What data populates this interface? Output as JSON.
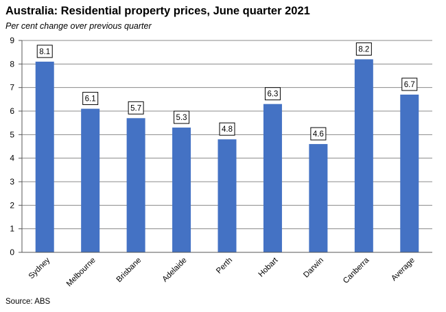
{
  "chart_data": {
    "type": "bar",
    "title": "Australia: Residential property prices, June quarter 2021",
    "subtitle": "Per cent change over previous quarter",
    "source": "Source: ABS",
    "xlabel": "",
    "ylabel": "",
    "categories": [
      "Sydney",
      "Melbourne",
      "Brisbane",
      "Adelaide",
      "Perth",
      "Hobart",
      "Darwin",
      "Canberra",
      "Average"
    ],
    "values": [
      8.1,
      6.1,
      5.7,
      5.3,
      4.8,
      6.3,
      4.6,
      8.2,
      6.7
    ],
    "value_labels": [
      "8.1",
      "6.1",
      "5.7",
      "5.3",
      "4.8",
      "6.3",
      "4.6",
      "8.2",
      "6.7"
    ],
    "ylim": [
      0,
      9
    ],
    "yticks": [
      "0",
      "1",
      "2",
      "3",
      "4",
      "5",
      "6",
      "7",
      "8",
      "9"
    ],
    "grid": true,
    "bar_color": "#4472C4",
    "legend": "none"
  }
}
